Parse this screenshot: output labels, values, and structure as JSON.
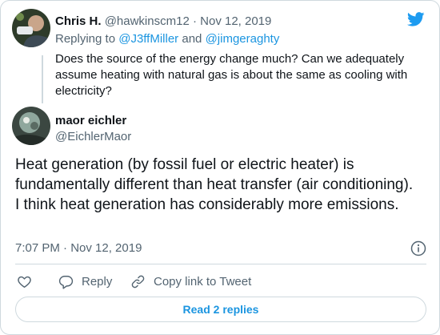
{
  "brand": {
    "icon": "twitter-bird-icon",
    "color": "#1d9bf0"
  },
  "parent_tweet": {
    "author_name": "Chris H.",
    "author_handle": "@hawkinscm12",
    "separator": "·",
    "date": "Nov 12, 2019",
    "replying_prefix": "Replying to",
    "reply_to_1": "@J3ffMiller",
    "reply_to_and": "and",
    "reply_to_2": "@jimgeraghty",
    "text": "Does the source of the energy change much? Can we adequately assume heating with natural gas is about the same as cooling with electricity?"
  },
  "tweet": {
    "author_name": "maor eichler",
    "author_handle": "@EichlerMaor",
    "text": "Heat generation (by fossil fuel or electric heater) is fundamentally different than heat transfer (air conditioning). I think heat generation has considerably more emissions.",
    "timestamp": "7:07 PM · Nov 12, 2019"
  },
  "actions": {
    "like_icon": "heart-icon",
    "reply_icon": "reply-bubble-icon",
    "reply_label": "Reply",
    "copy_icon": "link-icon",
    "copy_label": "Copy link to Tweet"
  },
  "read_replies_label": "Read 2 replies",
  "colors": {
    "link": "#1b95e0",
    "muted": "#536471",
    "border": "#cfd9de"
  }
}
